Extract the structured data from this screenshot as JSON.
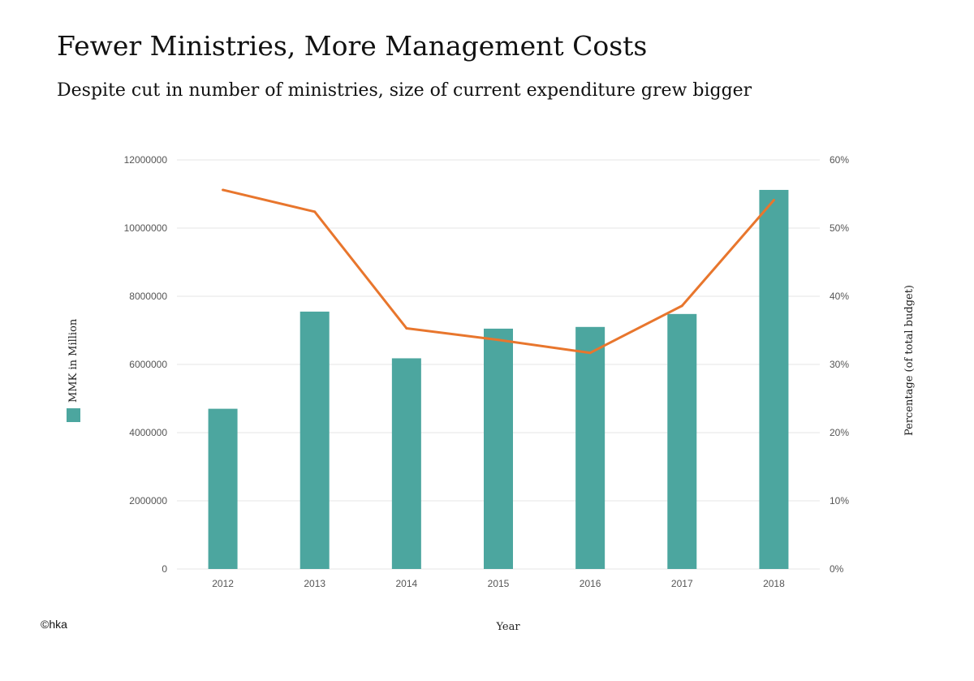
{
  "header": {
    "title": "Fewer Ministries, More Management Costs",
    "subtitle": "Despite cut in number of ministries, size of current expenditure grew bigger"
  },
  "credit": "©hka",
  "colors": {
    "bar": "#4ca69f",
    "line": "#e8762d"
  },
  "chart_data": {
    "type": "bar",
    "categories": [
      "2012",
      "2013",
      "2014",
      "2015",
      "2016",
      "2017",
      "2018"
    ],
    "series": [
      {
        "type": "bar",
        "axis": "left",
        "values": [
          4700000,
          7550000,
          6180000,
          7050000,
          7100000,
          7480000,
          11120000
        ]
      },
      {
        "type": "line",
        "axis": "right",
        "values": [
          55.6,
          52.4,
          35.3,
          33.6,
          31.7,
          38.6,
          54.1
        ]
      }
    ],
    "xlabel": "Year",
    "ylabel_left": "MMK in Million",
    "ylabel_right": "Percentage (of total budget)",
    "ylim_left": [
      0,
      12000000
    ],
    "ylim_right": [
      0,
      60
    ],
    "yticks_left": [
      "0",
      "2000000",
      "4000000",
      "6000000",
      "8000000",
      "10000000",
      "12000000"
    ],
    "yticks_right": [
      "0%",
      "10%",
      "20%",
      "30%",
      "40%",
      "50%",
      "60%"
    ],
    "grid": true,
    "legend": "left-vertical"
  }
}
